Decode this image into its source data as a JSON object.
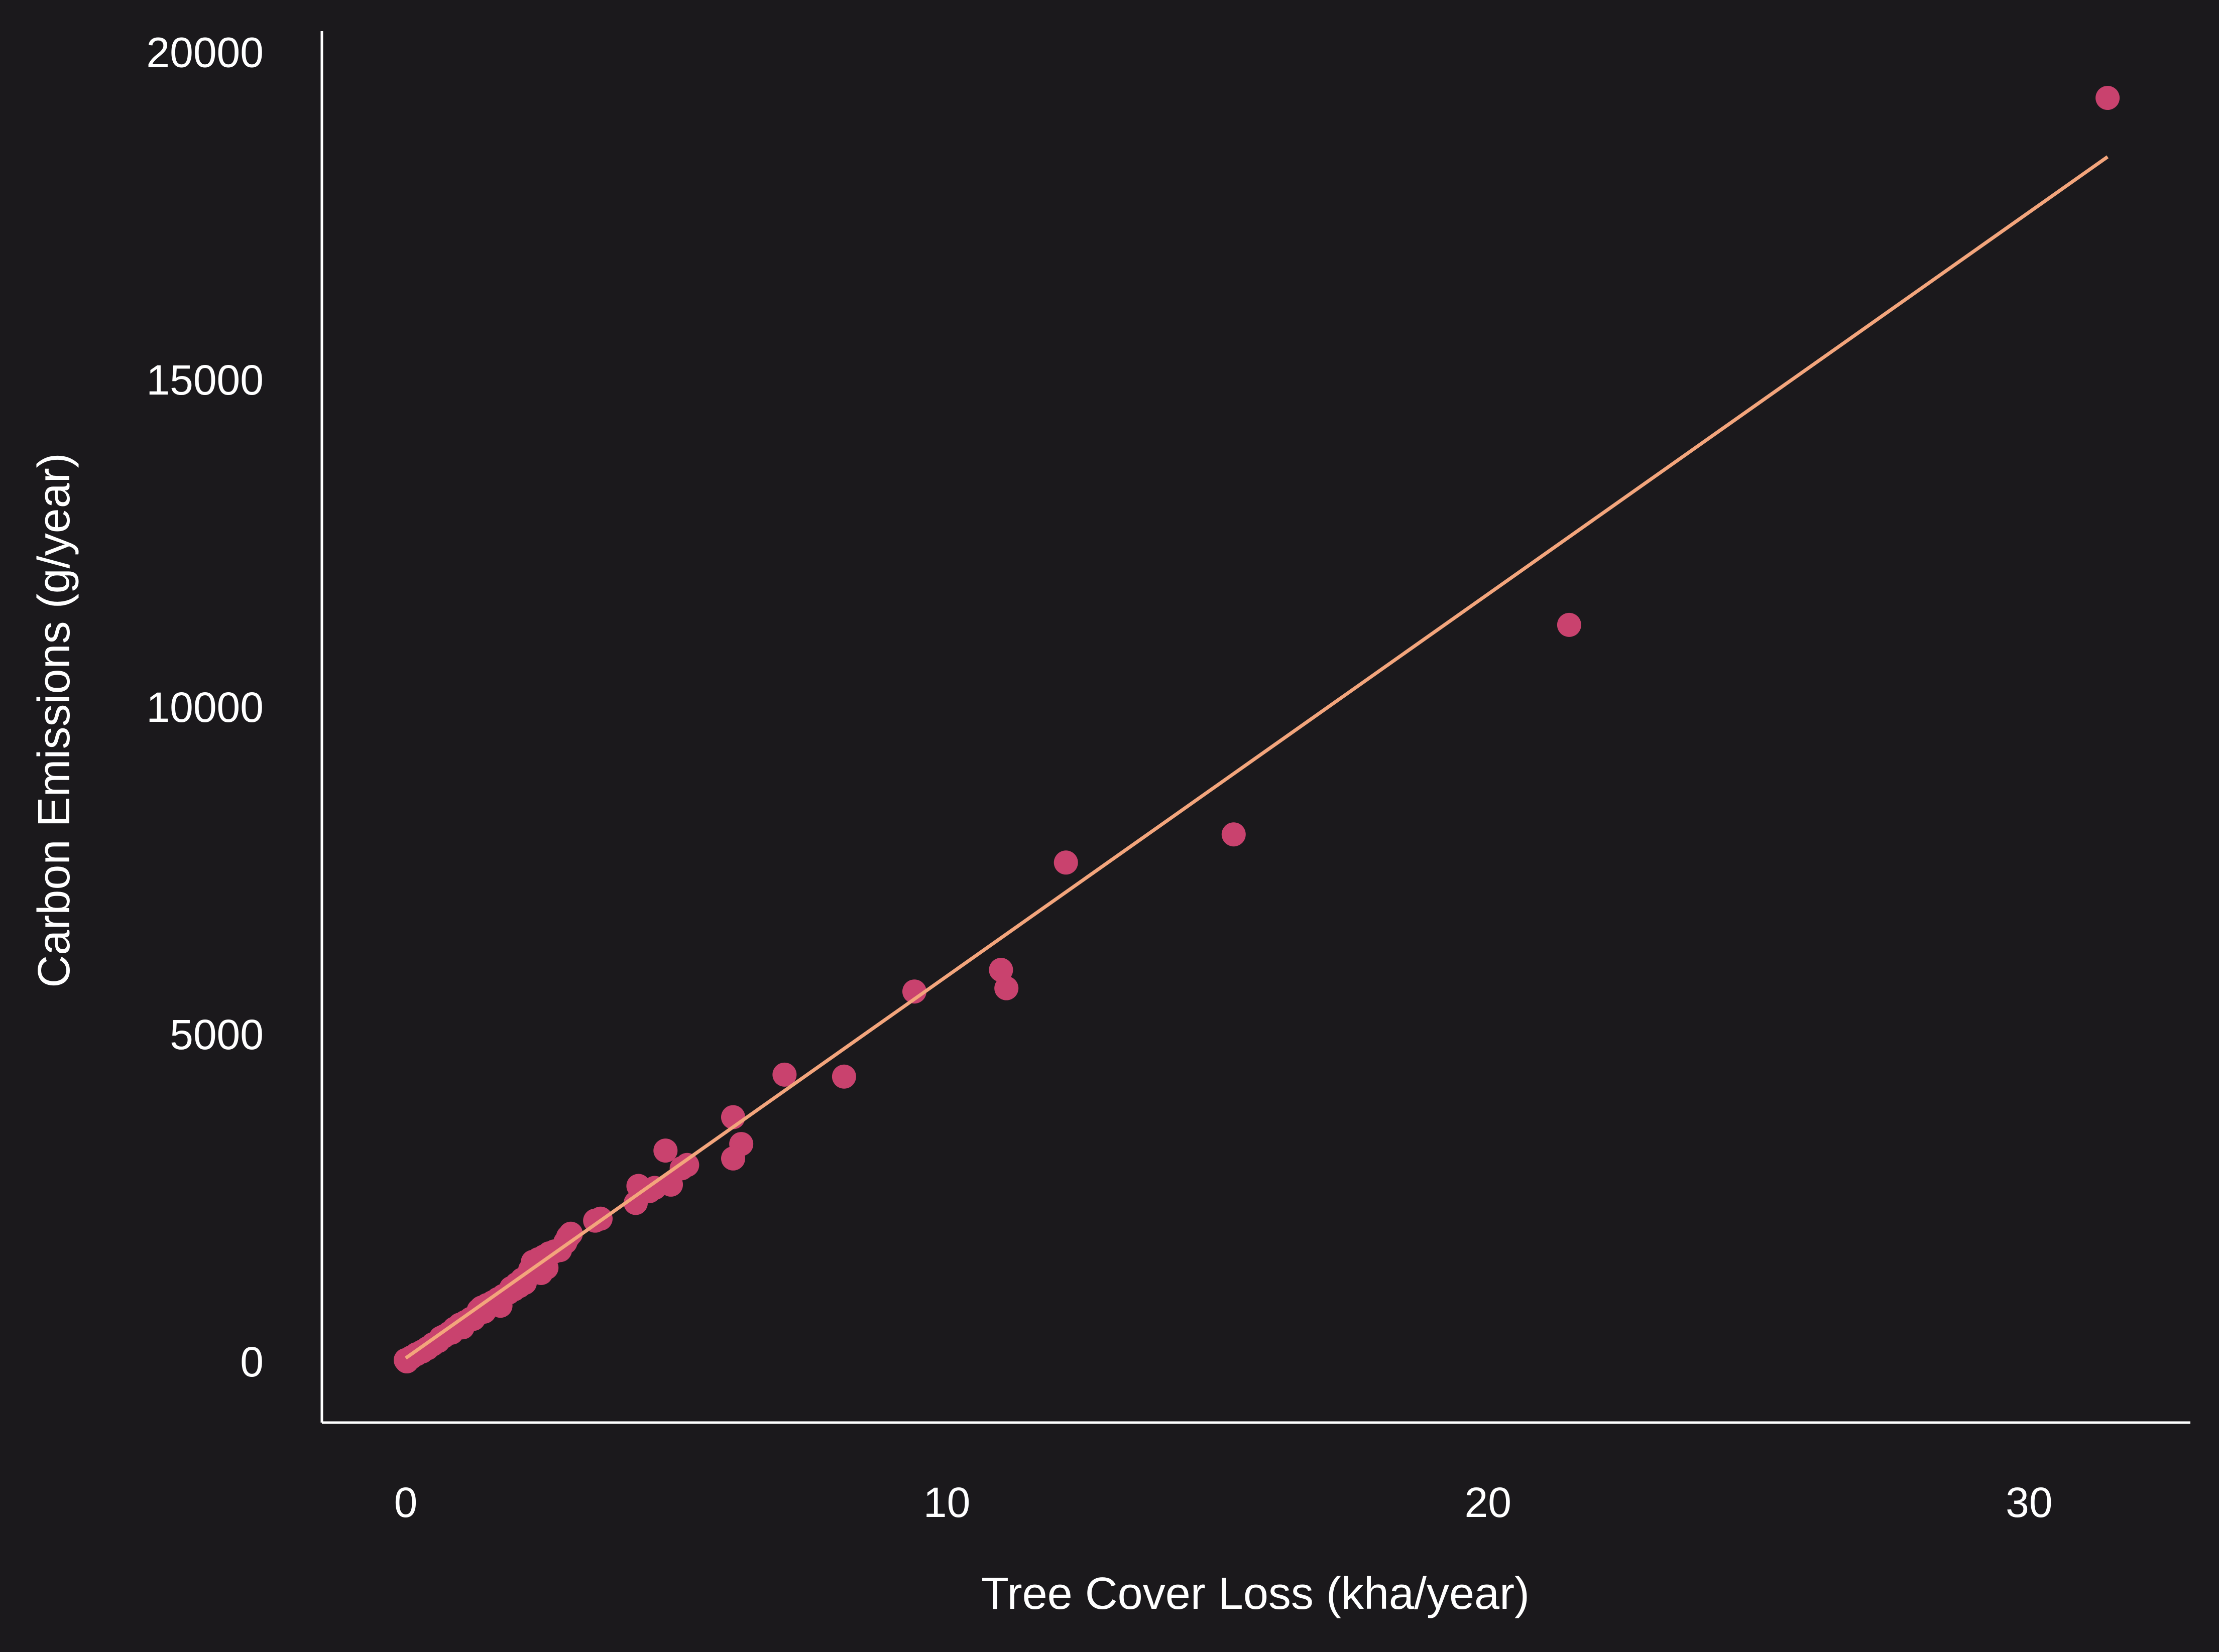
{
  "chart_data": {
    "type": "scatter",
    "title": "",
    "xlabel": "Tree Cover Loss (kha/year)",
    "ylabel": "Carbon Emissions (g/year)",
    "xlim": [
      -1.55,
      32.98
    ],
    "ylim": [
      -935,
      20320
    ],
    "xticks": [
      0,
      10,
      20,
      30
    ],
    "yticks": [
      0,
      5000,
      10000,
      15000,
      20000
    ],
    "grid": false,
    "legend": "none",
    "colors": {
      "background": "#1b191c",
      "points": "#c9426e",
      "trend": "#f3a57c",
      "axis": "#ffffff",
      "text": "#ffffff"
    },
    "series": [
      {
        "kind": "points",
        "x": [
          31.45,
          21.5,
          15.3,
          12.2,
          11.1,
          11.0,
          9.4,
          8.1,
          7.0,
          6.2,
          6.05,
          6.05,
          5.2,
          5.1,
          4.8,
          4.9,
          4.6,
          4.5,
          4.3,
          4.25,
          3.6,
          3.5,
          3.05,
          3.0,
          2.95,
          2.85,
          2.75,
          2.65,
          2.55,
          2.45,
          2.35,
          2.6,
          2.5,
          2.3,
          2.25,
          2.15,
          2.2,
          2.1,
          2.0,
          1.9,
          1.8,
          1.7,
          1.6,
          1.5,
          1.4,
          1.35,
          1.3,
          1.2,
          1.1,
          1.0,
          0.9,
          0.8,
          0.7,
          0.6,
          0.5,
          0.4,
          0.3,
          0.2,
          0.1,
          0.05,
          0.0,
          0.02,
          1.75,
          1.45,
          1.25,
          1.05,
          0.85,
          0.65,
          2.05,
          1.95
        ],
        "y": [
          19300,
          11250,
          8050,
          7620,
          5700,
          5980,
          5650,
          4350,
          4380,
          3320,
          3730,
          3100,
          3000,
          2950,
          3220,
          2700,
          2650,
          2600,
          2680,
          2420,
          2180,
          2150,
          1950,
          1900,
          1820,
          1700,
          1680,
          1650,
          1600,
          1560,
          1520,
          1430,
          1350,
          1400,
          1300,
          1250,
          1200,
          1150,
          1100,
          1050,
          1000,
          950,
          900,
          860,
          820,
          780,
          700,
          650,
          600,
          560,
          500,
          430,
          380,
          310,
          260,
          200,
          150,
          110,
          60,
          30,
          20,
          0,
          850,
          760,
          650,
          520,
          440,
          360,
          1180,
          1120
        ]
      },
      {
        "kind": "trend-line",
        "x": [
          0.0,
          31.45
        ],
        "y": [
          50,
          18400
        ]
      }
    ]
  }
}
